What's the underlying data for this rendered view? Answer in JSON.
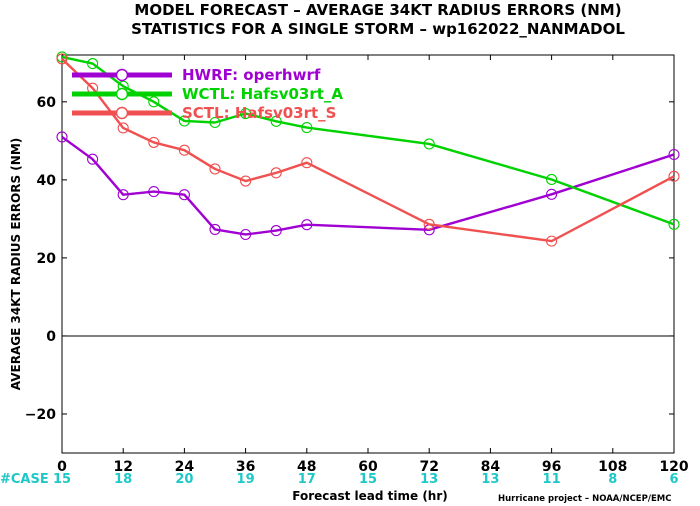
{
  "chart_data": {
    "type": "line",
    "title_line1": "MODEL FORECAST – AVERAGE 34KT RADIUS ERRORS (NM)",
    "title_line2": "STATISTICS FOR A SINGLE STORM – wp162022_NANMADOL",
    "xlabel": "Forecast lead time (hr)",
    "ylabel": "AVERAGE 34KT RADIUS ERRORS (NM)",
    "xlim": [
      0,
      120
    ],
    "ylim": [
      -30,
      72
    ],
    "xticks": [
      0,
      12,
      24,
      36,
      48,
      60,
      72,
      84,
      96,
      108,
      120
    ],
    "yticks": [
      -20,
      0,
      20,
      40,
      60
    ],
    "zero_line": true,
    "grid": false,
    "legend_position": "top-left",
    "series": [
      {
        "name": "HWRF: operhwrf",
        "color": "#a000d2",
        "x": [
          0,
          6,
          12,
          18,
          24,
          30,
          36,
          42,
          48,
          72,
          96,
          120
        ],
        "y": [
          51,
          45.3,
          36.2,
          37,
          36.2,
          27.3,
          26,
          27,
          28.5,
          27.2,
          36.3,
          46.5
        ]
      },
      {
        "name": "WCTL: Hafsv03rt_A",
        "color": "#00d200",
        "x": [
          0,
          6,
          12,
          18,
          24,
          30,
          36,
          42,
          48,
          72,
          96,
          120
        ],
        "y": [
          71.5,
          69.8,
          64,
          60,
          55.1,
          54.7,
          57,
          55,
          53.4,
          49.2,
          40.1,
          28.6
        ]
      },
      {
        "name": "SCTL: Hafsv03rt_S",
        "color": "#f05050",
        "x": [
          0,
          6,
          12,
          18,
          24,
          30,
          36,
          42,
          48,
          72,
          96,
          120
        ],
        "y": [
          71,
          63.5,
          53.3,
          49.6,
          47.6,
          42.8,
          39.7,
          41.8,
          44.4,
          28.6,
          24.3,
          40.9
        ]
      }
    ],
    "case_label": "#CASE",
    "case_x": [
      0,
      12,
      24,
      36,
      48,
      60,
      72,
      84,
      96,
      108,
      120
    ],
    "case_counts": [
      "15",
      "18",
      "20",
      "19",
      "17",
      "15",
      "13",
      "13",
      "11",
      "8",
      "6"
    ],
    "credit": "Hurricane project – NOAA/NCEP/EMC"
  }
}
